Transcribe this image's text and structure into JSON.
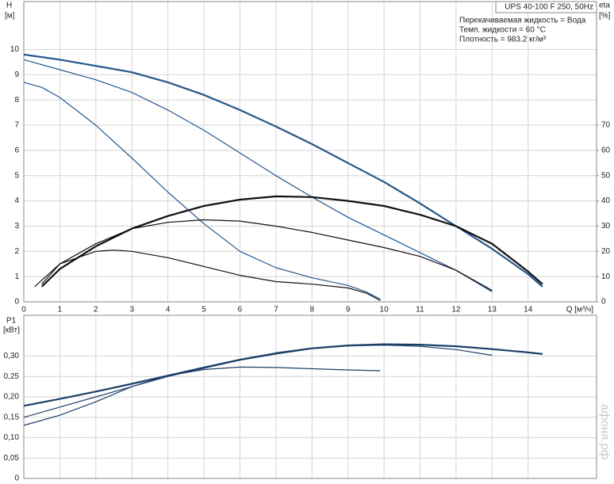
{
  "chart_data": [
    {
      "type": "line",
      "y_label": "H",
      "y_unit": "[м]",
      "y2_label": "eta",
      "y2_unit": "[%]",
      "x_label": "Q [м³/ч]",
      "legend_title": "UPS 40-100 F 250, 50Hz",
      "info": [
        "Перекачиваемая жидкость = Вода",
        "Темп. жидкости = 60 °C",
        "Плотность = 983.2 кг/м³"
      ],
      "watermark": "афоня.рф",
      "xlim": [
        0,
        15.9
      ],
      "ylim": [
        0,
        11.9
      ],
      "y2lim": [
        0,
        119
      ],
      "xticks": [
        0,
        1,
        2,
        3,
        4,
        5,
        6,
        7,
        8,
        9,
        10,
        11,
        12,
        13,
        14
      ],
      "yticks": [
        0,
        1,
        2,
        3,
        4,
        5,
        6,
        7,
        8,
        9,
        10
      ],
      "y2ticks": [
        0,
        10,
        20,
        30,
        40,
        50,
        60,
        70
      ],
      "grid": true,
      "series": [
        {
          "color": "#24578a",
          "width": 2.2,
          "x": [
            0,
            1,
            2,
            3,
            4,
            5,
            6,
            7,
            8,
            9,
            10,
            11,
            12,
            13,
            14,
            14.4
          ],
          "values": [
            9.8,
            9.6,
            9.35,
            9.1,
            8.7,
            8.2,
            7.6,
            6.95,
            6.25,
            5.5,
            4.75,
            3.9,
            3.0,
            2.1,
            1.1,
            0.6
          ]
        },
        {
          "color": "#24578a",
          "width": 1.2,
          "x": [
            0,
            1,
            2,
            3,
            4,
            5,
            6,
            7,
            8,
            9,
            10,
            11,
            12,
            13
          ],
          "values": [
            9.6,
            9.2,
            8.8,
            8.3,
            7.6,
            6.8,
            5.9,
            5.0,
            4.15,
            3.35,
            2.65,
            1.95,
            1.25,
            0.4
          ]
        },
        {
          "color": "#24578a",
          "width": 1.2,
          "x": [
            0,
            0.5,
            1,
            2,
            3,
            4,
            5,
            6,
            7,
            8,
            9,
            9.5,
            9.9
          ],
          "values": [
            8.7,
            8.5,
            8.1,
            7.0,
            5.7,
            4.35,
            3.1,
            2.0,
            1.35,
            0.95,
            0.65,
            0.4,
            0.1
          ]
        },
        {
          "color": "#111111",
          "width": 2.2,
          "axis": "y2",
          "x": [
            0.5,
            1,
            2,
            3,
            4,
            5,
            6,
            7,
            8,
            9,
            10,
            11,
            12,
            13,
            14,
            14.4
          ],
          "values": [
            6,
            13,
            22,
            29,
            34,
            38,
            40.5,
            41.8,
            41.5,
            40,
            38,
            34.5,
            30,
            23,
            12,
            7
          ]
        },
        {
          "color": "#111111",
          "width": 1.2,
          "axis": "y2",
          "x": [
            0.3,
            1,
            2,
            3,
            4,
            5,
            6,
            7,
            8,
            9,
            10,
            11,
            12,
            13
          ],
          "values": [
            6,
            15,
            23,
            29,
            31.5,
            32.5,
            32,
            30,
            27.5,
            24.5,
            21.5,
            18,
            12.5,
            4.5
          ]
        },
        {
          "color": "#111111",
          "width": 1.2,
          "axis": "y2",
          "x": [
            0.5,
            1,
            2,
            2.5,
            3,
            4,
            5,
            6,
            7,
            8,
            9,
            9.5,
            9.9
          ],
          "values": [
            7,
            15,
            20,
            20.5,
            20,
            17.5,
            14,
            10.5,
            8,
            7,
            5.5,
            3.5,
            0.5
          ]
        }
      ]
    },
    {
      "type": "line",
      "y_label": "P1",
      "y_unit": "[кВт]",
      "xlim": [
        0,
        15.9
      ],
      "ylim": [
        0,
        0.4
      ],
      "xticks": [
        0,
        1,
        2,
        3,
        4,
        5,
        6,
        7,
        8,
        9,
        10,
        11,
        12,
        13,
        14
      ],
      "yticks": [
        0,
        {
          "value": 0.05,
          "label": "0,05"
        },
        {
          "value": 0.1,
          "label": "0,10"
        },
        {
          "value": 0.15,
          "label": "0,15"
        },
        {
          "value": 0.2,
          "label": "0,20"
        },
        {
          "value": 0.25,
          "label": "0,25"
        },
        {
          "value": 0.3,
          "label": "0,30"
        }
      ],
      "grid": true,
      "series": [
        {
          "color": "#1c3f6a",
          "width": 2.2,
          "x": [
            0,
            1,
            2,
            3,
            4,
            5,
            6,
            7,
            8,
            9,
            10,
            11,
            12,
            13,
            14,
            14.4
          ],
          "values": [
            0.178,
            0.195,
            0.213,
            0.232,
            0.252,
            0.272,
            0.291,
            0.307,
            0.319,
            0.326,
            0.329,
            0.328,
            0.324,
            0.317,
            0.309,
            0.305
          ]
        },
        {
          "color": "#1c3f6a",
          "width": 1.2,
          "x": [
            0,
            1,
            2,
            3,
            4,
            5,
            6,
            7,
            8,
            9,
            10,
            11,
            12,
            13
          ],
          "values": [
            0.15,
            0.175,
            0.2,
            0.225,
            0.25,
            0.27,
            0.29,
            0.305,
            0.318,
            0.325,
            0.327,
            0.324,
            0.316,
            0.302
          ]
        },
        {
          "color": "#1c3f6a",
          "width": 1.2,
          "x": [
            0,
            1,
            2,
            3,
            4,
            5,
            6,
            7,
            8,
            9,
            9.9
          ],
          "values": [
            0.13,
            0.155,
            0.188,
            0.225,
            0.252,
            0.267,
            0.273,
            0.272,
            0.269,
            0.266,
            0.264
          ]
        }
      ]
    }
  ]
}
